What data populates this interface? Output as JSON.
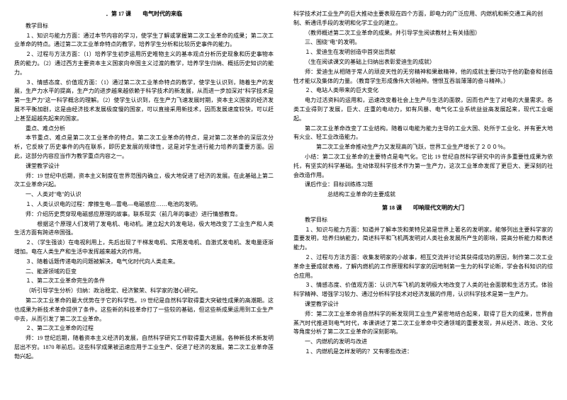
{
  "left": {
    "title": "．第 17 课　　电气时代的来临",
    "h1": "教学目标",
    "p1": "１、知识与能力方面：通过本节内容的学习，使学生了解或掌握第二次工业革命的成果；第二次工业革命的特点。通过第二次工业革命特点的教学，培养学生分析和比较历史事件的能力。",
    "p2": "２、过程与方法方面：（1）培养学生初步运用历史唯物主义的基本观点分析历史现象和历史事物本质的能力。（2）通过西方主要资本主义国家向帝国主义过渡的教学，培养学生归纳、概括历史知识的能力。",
    "p3": "３、情感态度、价值观方面：（1）通过第二次工业革命特点的教学，使学生认识到，随着生产的发展，生产力水平的提高，生产力的进步越来越依赖于科学技术的新发展，从而进一步加深对\"科学技术是第一生产力\"这一科学概念的理解。（2）使学生认识到，在生产力飞速发展时期，资本主义国家的经济发展不平衡加剧，这是由经济技术发展极度慢的国家，可以直接采用新技术，因而发展速度较快，可以赶上甚至超越先起来的国家。",
    "h2": "重点、难点分析",
    "p4": "本节重点、难点是第二次工业革命的特点。第二次工业革命的特点，是对第二次革命的深层次分析，它反映了历史事件的内在联系，即历史发展的规律性，这是对学生进行能力培养的重要方面。因此，这部分内容应当作为教学重点内容之一。",
    "h3": "课堂教学设计",
    "p5": "师：19 世纪中后期，资本主义制度在世界范围内确立，极大地促进了经济的发展。在此基础上第二次工业革命兴起。",
    "p6": "一、人类对\"电\"的认识",
    "p7": "１、人类认识电的过程：摩擦生电—雷电—电磁感应……电池的发明。",
    "p8": "师：介绍历史贯穿现电磁感应原理的故事。联系现实（前几年的事迹）进行情感教育。",
    "p9": "　　根据这个原理人们发明了发电机、电动机。建立起大的发电站，极大地改变了工业生产和人类生活方面有跨进帝国强。",
    "p10": "２、（学生强谈）在电视利用上，先后出现了干梯发电机、实用发电机、自激式发电机、发电量逐渐增加。电在人类生产和生活中发挥越来越大的作用。",
    "p11": "３、随着话题传递电的问题被解决，电气化时代向人类走来。",
    "p12": "二、能源领域的巨变",
    "p13": "１、第二次工业革命完生的条件",
    "p14": "（听引导学生分析）归纳：政治稳定、经济繁荣、科学家的潜心研究。",
    "p15": "第二次工业革命的最大优势在于它的科学性。19 世纪是自然科学取得重大突破性成果的高潮期。这也成果为新技术革命提供了条件。这些新的科技革命打了一些较的基础，但这些新成果运用到工业生产中去，从而引发了第二次工业革命。",
    "p16": "２、第二次工业革命的过程",
    "p17": "师：19 世纪后期，随着资本主义经济的发展，自然科学研究工作取得重大进展。各种新技术新发明层出不穷。1870 年前后。这些科学成果被迅速应用于工业生产、促进了经济的发展。第二次工业革命莲勃兴起。"
  },
  "right": {
    "p1": "科学技术对工业生产的巨大推动主要表现在四个方面，即电力的广泛应用、内燃机和新交通工具的创制、新通讯手段的发明和化学工业的建立。",
    "p2": "（教师概述第二次工业革命的成果。并引导学生阅读教材上有关插图）",
    "p3": "三、围绕\"电\"的发明。",
    "p4": "１、爱迪生在发明创造中首突出贡献",
    "p5": "（生在阅读课文的基础上归纳出表彰爱迪生的成就）",
    "p6": "师：爱迪生从相随于常人的顽皮天性的无穷精神和果敢精神，他的成就主要归功于他的勤奋和创造性才能以及集体的力量。（教育学生形成像伟大领袖神。憎恨互吞翁薄薄的奋斗精神。）",
    "p7": "２、电站人类带来的巨大变化",
    "p8": "电力过活资料的运用和，迅速改变着社会上生产与生活的面貌，因而也产生了对电的大量需求。各类工业得到了发展，巨大、庄重的电动力，如有风暴、电气化工业系统益益高发展起来，现代工业崛起。",
    "p9": "第二次工业革命改变了工业结构。随着以电能为能力主导的工业大国、处所于工业化、并有更大地有火业、轻工业改造能力。",
    "p10": "　　第二次工业革命推动生产力又发现高的飞跃，世界工业生产增长了２００％。",
    "p11": "小结：第二次工业革命的主要特点是电气化。它比 19 世纪自然科学研究中的许多重要性成果为依托，有坚实的科学基础。生动体现科学技术作为第一生产力，这次工业革命发挥了更巨大、更深刻的社会改造作用。",
    "p12": "课后作业：目标训练练习题",
    "p13": "总结构工业革命的主要成就",
    "title2": "第 18 课　　叩响现代文明的大门",
    "h4": "教学目标",
    "p14": "１、知识与能力方面：知道并了解本茨和莱特兄弟是世界上著名的发明家。能够列出主要科学家的重要发明，培养归纳能力，简述科平和飞机两发明对人类社会发展所产生的影响，提高分析能力和表述能力。",
    "p15": "２、过程与方法方面：收集发明家的小故事，相互交流并讨论其获得成功的原因，制作第二次工业革命主要成就表格，了解内燃机的工作原理和科学家的因地制第一生力的科学论断，学会各科知识的综合应用。",
    "p16": "３、情感态度、价值观方面：认识汽车飞机的发明极大地改变了人类的社会面貌和生活方式。体验科学精神、增强学习较力、通过分析科学技术对经济发展的作用，认识科学技术是第一生产力。",
    "h5": "课堂教学设计",
    "p17": "师：第二次工业革命将自然科学的新发现同工业生产紧密地结合起来，取得了巨大的成果，世界由蒸汽时代推进到电气时代，本课讲述了第二次工业革命中交通领域的重要发现，并从经济、政治、文化等角度分析了第二次工业革命的深刻影响。",
    "p18": "一、内燃机的发明与改进",
    "p19": "１、内燃机是怎样发明的？又有哪些改进："
  }
}
